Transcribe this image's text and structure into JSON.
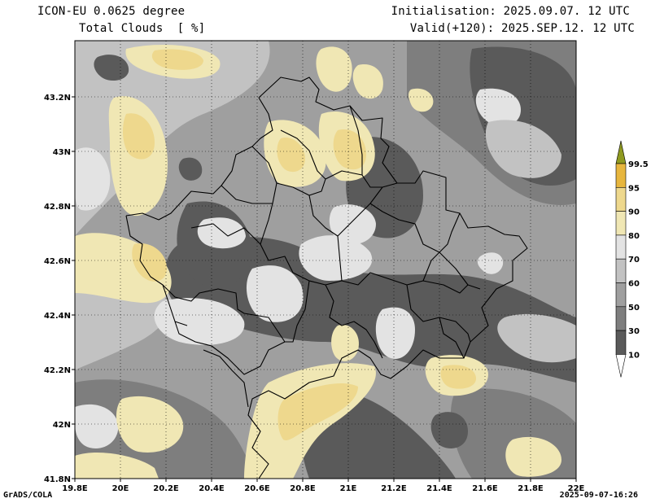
{
  "header": {
    "model": "ICON-EU 0.0625 degree",
    "variable": "Total Clouds  [ %]",
    "initialisation": "Initialisation: 2025.09.07. 12 UTC",
    "valid": "Valid(+120): 2025.SEP.12. 12 UTC"
  },
  "axes": {
    "lon_labels": [
      "19.8E",
      "20E",
      "20.2E",
      "20.4E",
      "20.6E",
      "20.8E",
      "21E",
      "21.2E",
      "21.4E",
      "21.6E",
      "21.8E",
      "22E"
    ],
    "lat_labels": [
      "41.8N",
      "42N",
      "42.2N",
      "42.4N",
      "42.6N",
      "42.8N",
      "43N",
      "43.2N"
    ]
  },
  "colorbar": {
    "levels": [
      "10",
      "30",
      "50",
      "60",
      "70",
      "80",
      "90",
      "95",
      "99.5"
    ],
    "colors": {
      "below_10": "#ffffff",
      "10_30": "#5a5a5a",
      "30_50": "#7e7e7e",
      "50_60": "#9f9f9f",
      "60_70": "#c2c2c2",
      "70_80": "#e3e3e3",
      "80_90": "#f0e7b4",
      "90_95": "#eed88d",
      "95_99_5": "#e7b63e",
      "above_99_5": "#8f9a20"
    }
  },
  "footer": {
    "left": "GrADS/COLA",
    "right": "2025-09-07-16:26"
  }
}
